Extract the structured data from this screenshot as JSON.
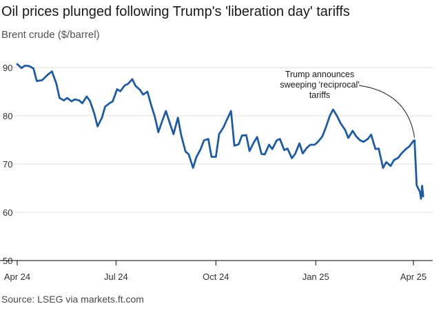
{
  "title": "Oil prices plunged following Trump's 'liberation day' tariffs",
  "subtitle": "Brent crude ($/barrel)",
  "source": "Source: LSEG via markets.ft.com",
  "colors": {
    "line": "#1f5b9e",
    "grid": "#e6e2de",
    "axis": "#000000",
    "text": "#33302e"
  },
  "chart_data": {
    "type": "line",
    "title": "Oil prices plunged following Trump's 'liberation day' tariffs",
    "ylabel": "Brent crude ($/barrel)",
    "xlabel": "",
    "ylim": [
      50,
      90
    ],
    "xlim": [
      "2024-04-01",
      "2025-04-09"
    ],
    "y_ticks": [
      50,
      60,
      70,
      80,
      90
    ],
    "x_ticks": [
      {
        "date": "2024-04-01",
        "label": "Apr 24"
      },
      {
        "date": "2024-07-01",
        "label": "Jul 24"
      },
      {
        "date": "2024-10-01",
        "label": "Oct 24"
      },
      {
        "date": "2025-01-01",
        "label": "Jan 25"
      },
      {
        "date": "2025-04-01",
        "label": "Apr 25"
      }
    ],
    "grid": "horizontal",
    "legend": "none",
    "series": [
      {
        "color": "#1f5b9e",
        "points": [
          [
            "2024-04-01",
            90.7
          ],
          [
            "2024-04-05",
            89.9
          ],
          [
            "2024-04-08",
            90.4
          ],
          [
            "2024-04-12",
            90.3
          ],
          [
            "2024-04-16",
            89.8
          ],
          [
            "2024-04-19",
            87.2
          ],
          [
            "2024-04-24",
            87.4
          ],
          [
            "2024-04-29",
            88.5
          ],
          [
            "2024-05-03",
            89.2
          ],
          [
            "2024-05-07",
            86.7
          ],
          [
            "2024-05-10",
            83.7
          ],
          [
            "2024-05-14",
            83.2
          ],
          [
            "2024-05-17",
            83.7
          ],
          [
            "2024-05-21",
            83.0
          ],
          [
            "2024-05-24",
            83.4
          ],
          [
            "2024-05-28",
            83.2
          ],
          [
            "2024-05-31",
            82.6
          ],
          [
            "2024-06-04",
            84.0
          ],
          [
            "2024-06-07",
            83.1
          ],
          [
            "2024-06-11",
            80.5
          ],
          [
            "2024-06-14",
            77.8
          ],
          [
            "2024-06-18",
            79.6
          ],
          [
            "2024-06-21",
            81.9
          ],
          [
            "2024-06-25",
            82.6
          ],
          [
            "2024-06-28",
            83.0
          ],
          [
            "2024-07-02",
            85.5
          ],
          [
            "2024-07-05",
            85.1
          ],
          [
            "2024-07-09",
            86.3
          ],
          [
            "2024-07-12",
            86.6
          ],
          [
            "2024-07-16",
            87.6
          ],
          [
            "2024-07-19",
            86.2
          ],
          [
            "2024-07-23",
            85.4
          ],
          [
            "2024-07-26",
            84.4
          ],
          [
            "2024-07-30",
            85.0
          ],
          [
            "2024-08-02",
            82.5
          ],
          [
            "2024-08-06",
            79.6
          ],
          [
            "2024-08-09",
            76.6
          ],
          [
            "2024-08-13",
            79.2
          ],
          [
            "2024-08-16",
            81.0
          ],
          [
            "2024-08-20",
            78.2
          ],
          [
            "2024-08-23",
            76.2
          ],
          [
            "2024-08-27",
            79.6
          ],
          [
            "2024-08-30",
            76.0
          ],
          [
            "2024-09-03",
            72.6
          ],
          [
            "2024-09-06",
            72.0
          ],
          [
            "2024-09-10",
            69.2
          ],
          [
            "2024-09-13",
            71.4
          ],
          [
            "2024-09-17",
            73.1
          ],
          [
            "2024-09-20",
            74.9
          ],
          [
            "2024-09-24",
            75.2
          ],
          [
            "2024-09-27",
            71.5
          ],
          [
            "2024-10-01",
            71.5
          ],
          [
            "2024-10-04",
            76.2
          ],
          [
            "2024-10-08",
            77.6
          ],
          [
            "2024-10-11",
            79.1
          ],
          [
            "2024-10-15",
            81.0
          ],
          [
            "2024-10-18",
            73.8
          ],
          [
            "2024-10-22",
            74.1
          ],
          [
            "2024-10-25",
            75.9
          ],
          [
            "2024-10-29",
            76.0
          ],
          [
            "2024-11-01",
            72.7
          ],
          [
            "2024-11-05",
            74.5
          ],
          [
            "2024-11-08",
            75.6
          ],
          [
            "2024-11-12",
            72.1
          ],
          [
            "2024-11-15",
            72.0
          ],
          [
            "2024-11-19",
            74.0
          ],
          [
            "2024-11-22",
            73.1
          ],
          [
            "2024-11-26",
            74.9
          ],
          [
            "2024-11-29",
            75.2
          ],
          [
            "2024-12-03",
            72.9
          ],
          [
            "2024-12-06",
            73.2
          ],
          [
            "2024-12-10",
            71.2
          ],
          [
            "2024-12-13",
            72.1
          ],
          [
            "2024-12-17",
            74.3
          ],
          [
            "2024-12-20",
            72.2
          ],
          [
            "2024-12-24",
            73.4
          ],
          [
            "2024-12-27",
            74.0
          ],
          [
            "2024-12-31",
            74.0
          ],
          [
            "2025-01-03",
            74.6
          ],
          [
            "2025-01-07",
            75.7
          ],
          [
            "2025-01-10",
            77.4
          ],
          [
            "2025-01-14",
            80.0
          ],
          [
            "2025-01-17",
            81.3
          ],
          [
            "2025-01-21",
            79.8
          ],
          [
            "2025-01-24",
            78.4
          ],
          [
            "2025-01-28",
            77.1
          ],
          [
            "2025-01-31",
            75.4
          ],
          [
            "2025-02-04",
            76.9
          ],
          [
            "2025-02-07",
            75.8
          ],
          [
            "2025-02-11",
            74.9
          ],
          [
            "2025-02-14",
            74.6
          ],
          [
            "2025-02-18",
            75.2
          ],
          [
            "2025-02-21",
            76.1
          ],
          [
            "2025-02-25",
            73.1
          ],
          [
            "2025-02-28",
            73.2
          ],
          [
            "2025-03-04",
            69.2
          ],
          [
            "2025-03-07",
            70.4
          ],
          [
            "2025-03-11",
            69.6
          ],
          [
            "2025-03-14",
            70.8
          ],
          [
            "2025-03-18",
            71.3
          ],
          [
            "2025-03-21",
            72.2
          ],
          [
            "2025-03-25",
            73.1
          ],
          [
            "2025-03-28",
            73.6
          ],
          [
            "2025-04-01",
            74.8
          ],
          [
            "2025-04-02",
            74.9
          ],
          [
            "2025-04-03",
            70.1
          ],
          [
            "2025-04-04",
            65.6
          ],
          [
            "2025-04-07",
            64.2
          ],
          [
            "2025-04-08",
            62.8
          ],
          [
            "2025-04-09",
            65.5
          ],
          [
            "2025-04-10",
            63.3
          ]
        ]
      }
    ],
    "annotations": [
      {
        "lines": [
          "Trump announces",
          "sweeping 'reciprocal'",
          "tariffs"
        ],
        "target": [
          "2025-04-02",
          74.9
        ]
      }
    ]
  }
}
